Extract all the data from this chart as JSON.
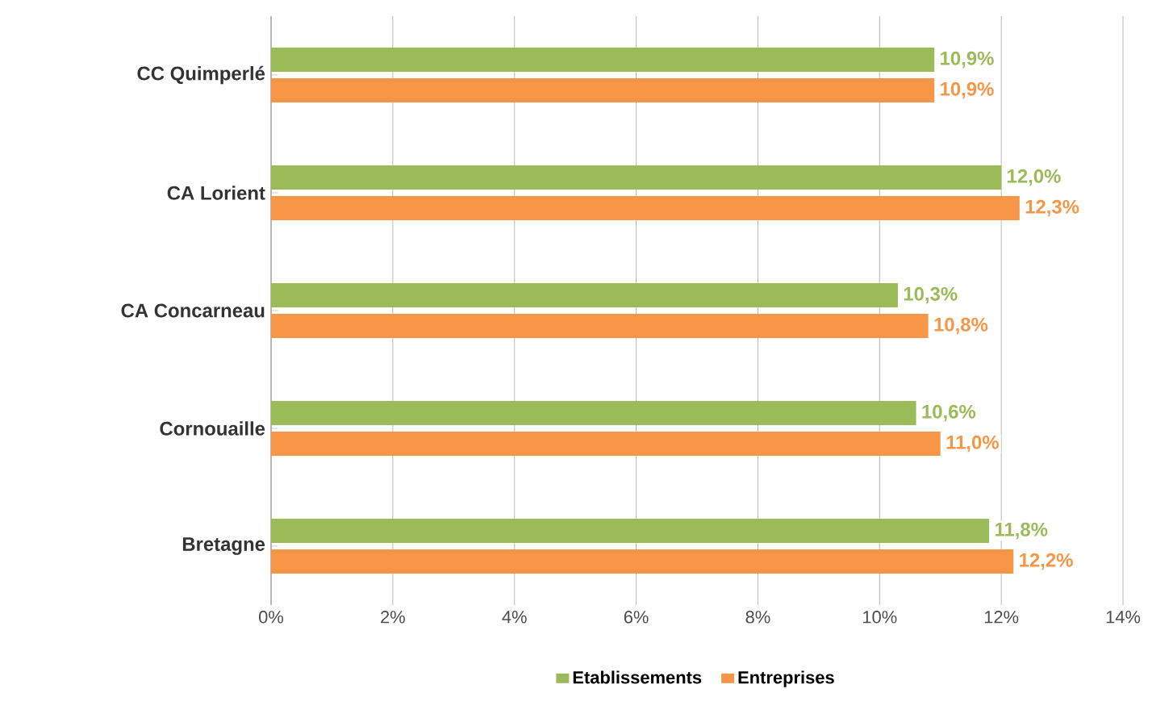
{
  "chart_data": {
    "type": "bar",
    "orientation": "horizontal",
    "categories": [
      "CC Quimperlé",
      "CA Lorient",
      "CA Concarneau",
      "Cornouaille",
      "Bretagne"
    ],
    "series": [
      {
        "name": "Etablissements",
        "color": "#9bbb59",
        "values": [
          10.9,
          12.0,
          10.3,
          10.6,
          11.8
        ],
        "value_labels": [
          "10,9%",
          "12,0%",
          "10,3%",
          "10,6%",
          "11,8%"
        ]
      },
      {
        "name": "Entreprises",
        "color": "#f79646",
        "values": [
          10.9,
          12.3,
          10.8,
          11.0,
          12.2
        ],
        "value_labels": [
          "10,9%",
          "12,3%",
          "10,8%",
          "11,0%",
          "12,2%"
        ]
      }
    ],
    "xlim": [
      0,
      14
    ],
    "xticks": [
      {
        "value": 0,
        "label": "0%"
      },
      {
        "value": 2,
        "label": "2%"
      },
      {
        "value": 4,
        "label": "4%"
      },
      {
        "value": 6,
        "label": "6%"
      },
      {
        "value": 8,
        "label": "8%"
      },
      {
        "value": 10,
        "label": "10%"
      },
      {
        "value": 12,
        "label": "12%"
      },
      {
        "value": 14,
        "label": "14%"
      }
    ],
    "grid": "x",
    "legend": "bottom"
  }
}
